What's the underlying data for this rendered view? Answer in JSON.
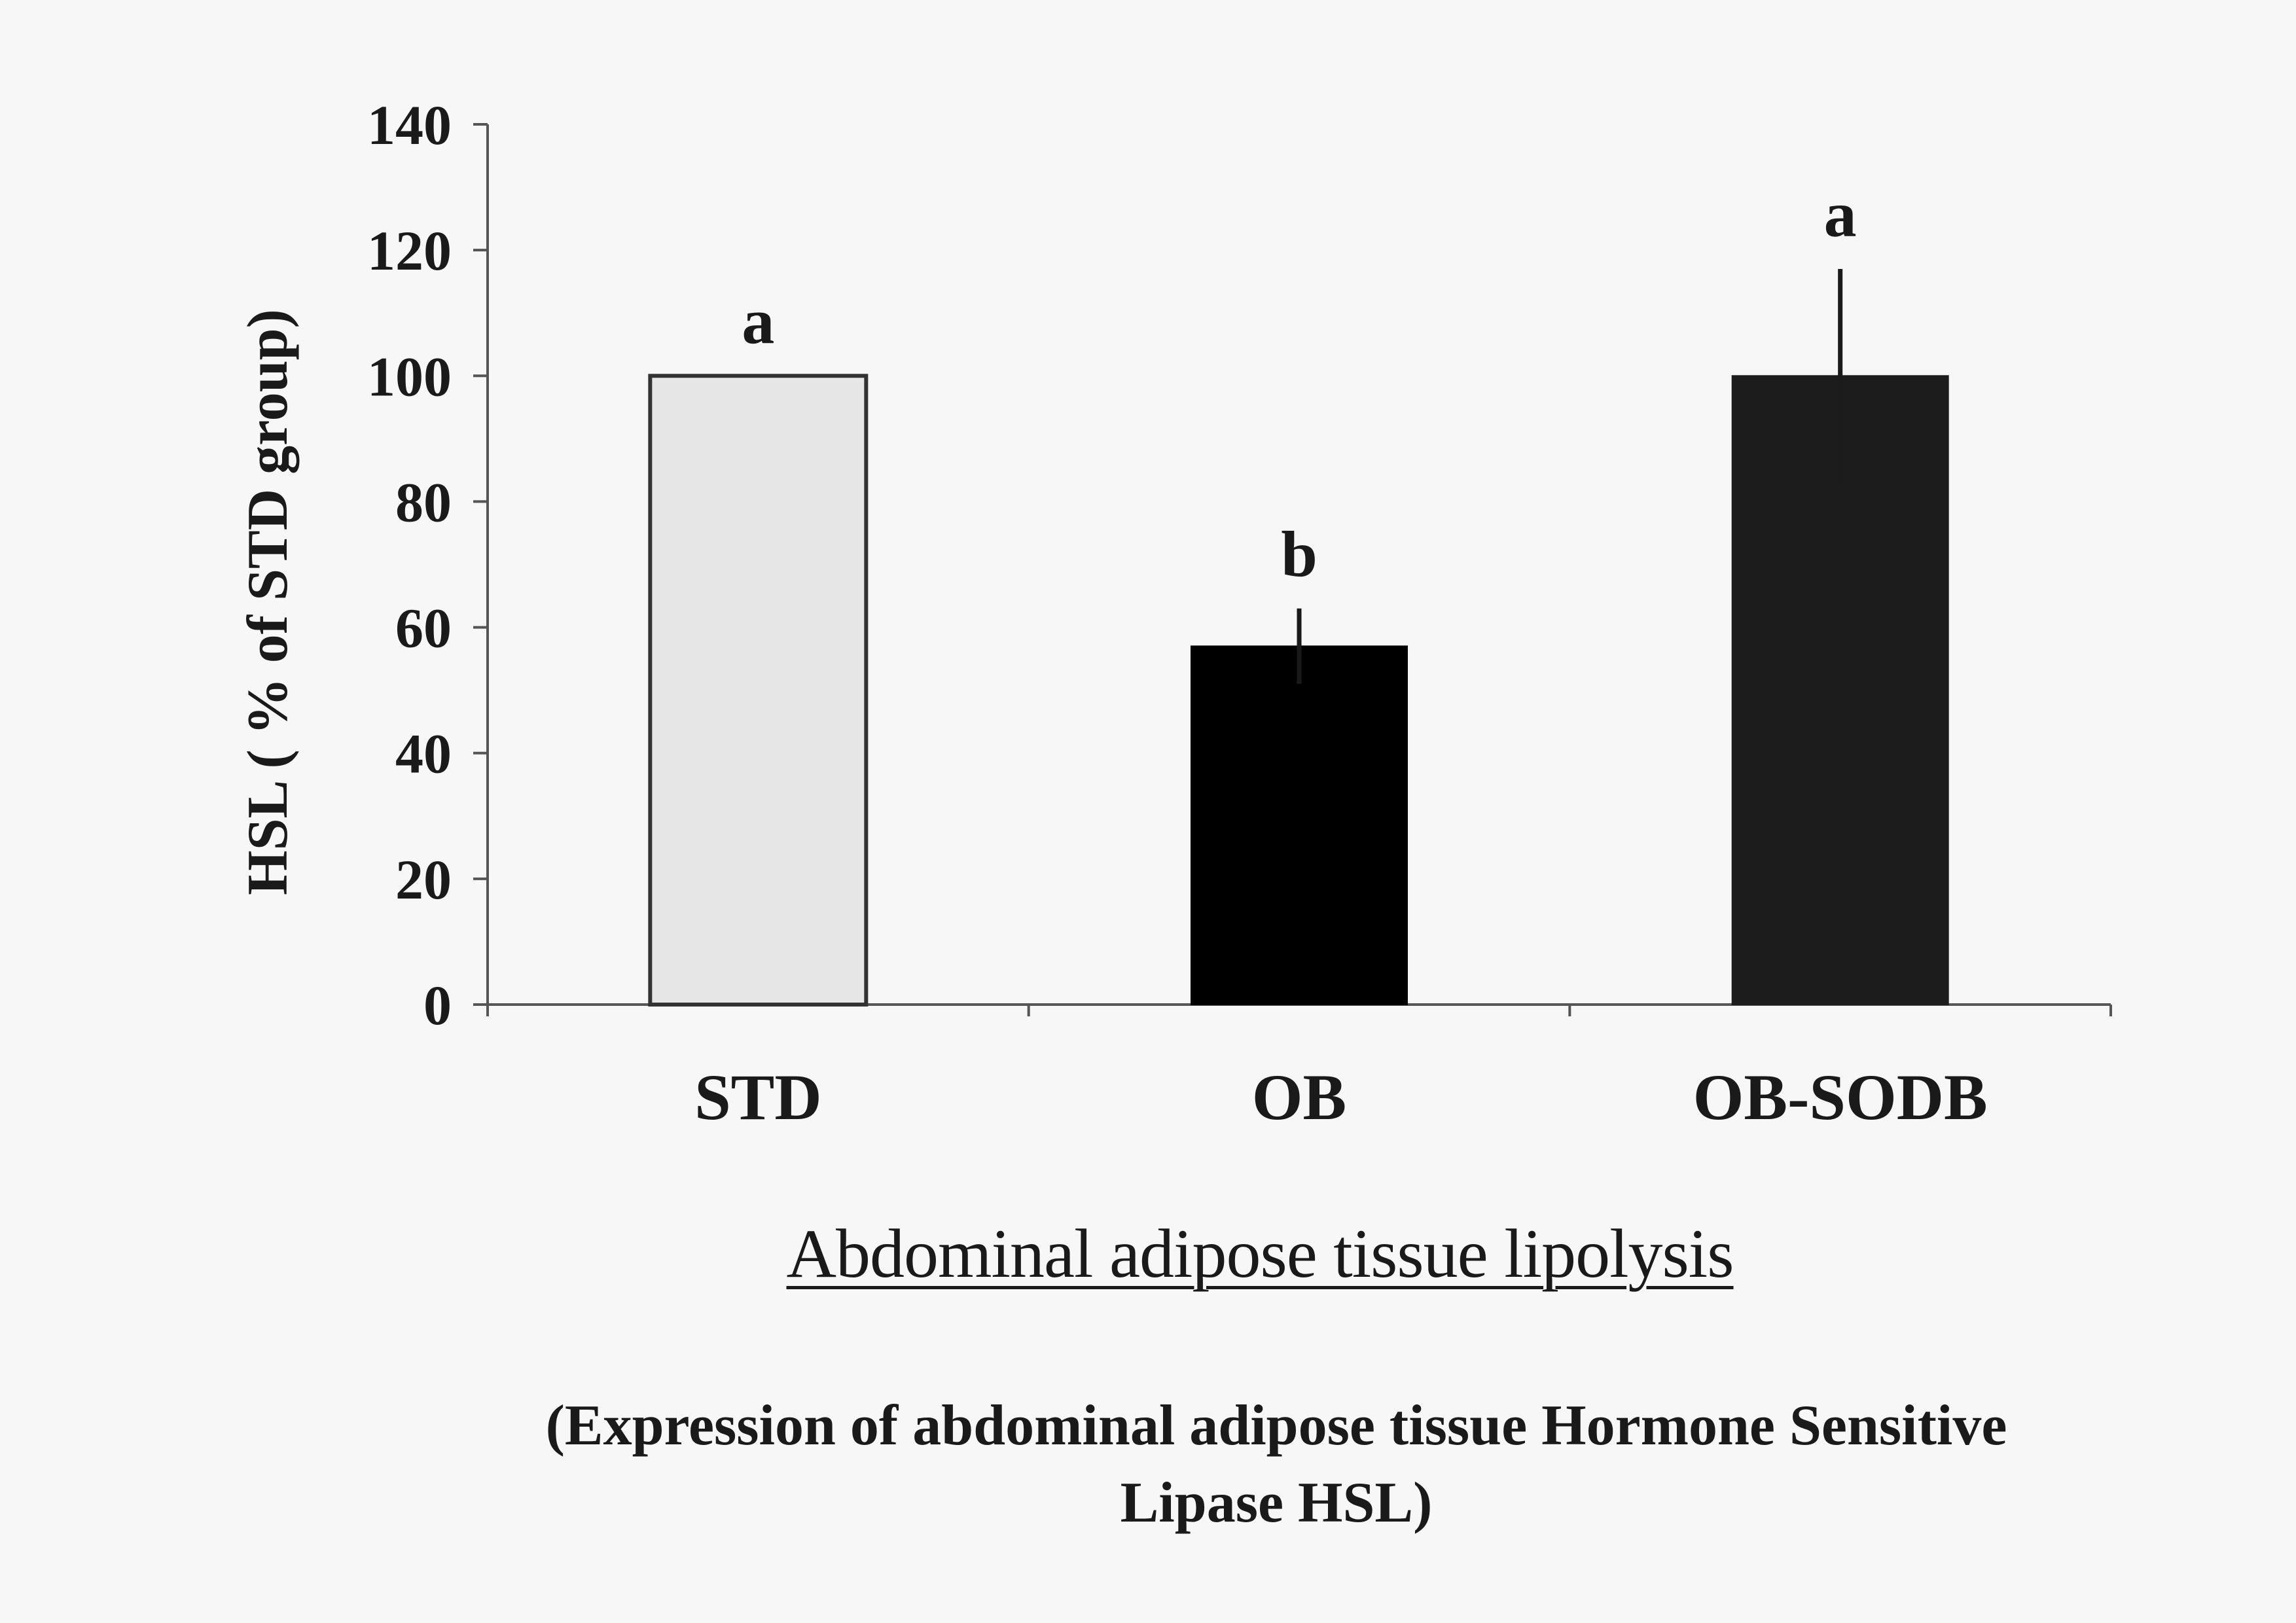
{
  "chart_data": {
    "type": "bar",
    "ylabel": "HSL ( % of STD group)",
    "xlabel": "",
    "title": "Abdominal adipose tissue  lipolysis",
    "subtitle_lines": [
      "(Expression of abdominal adipose tissue Hormone Sensitive",
      "Lipase HSL)"
    ],
    "categories": [
      "STD",
      "OB",
      "OB-SODB"
    ],
    "values": [
      100,
      57,
      100
    ],
    "errors": [
      0,
      6,
      17
    ],
    "significance": [
      "a",
      "b",
      "a"
    ],
    "bar_colors": [
      "#e6e6e6",
      "#000000",
      "#1c1c1c"
    ],
    "ylim": [
      0,
      140
    ],
    "yticks": [
      0,
      20,
      40,
      60,
      80,
      100,
      120,
      140
    ],
    "grid": false,
    "legend": "none"
  }
}
